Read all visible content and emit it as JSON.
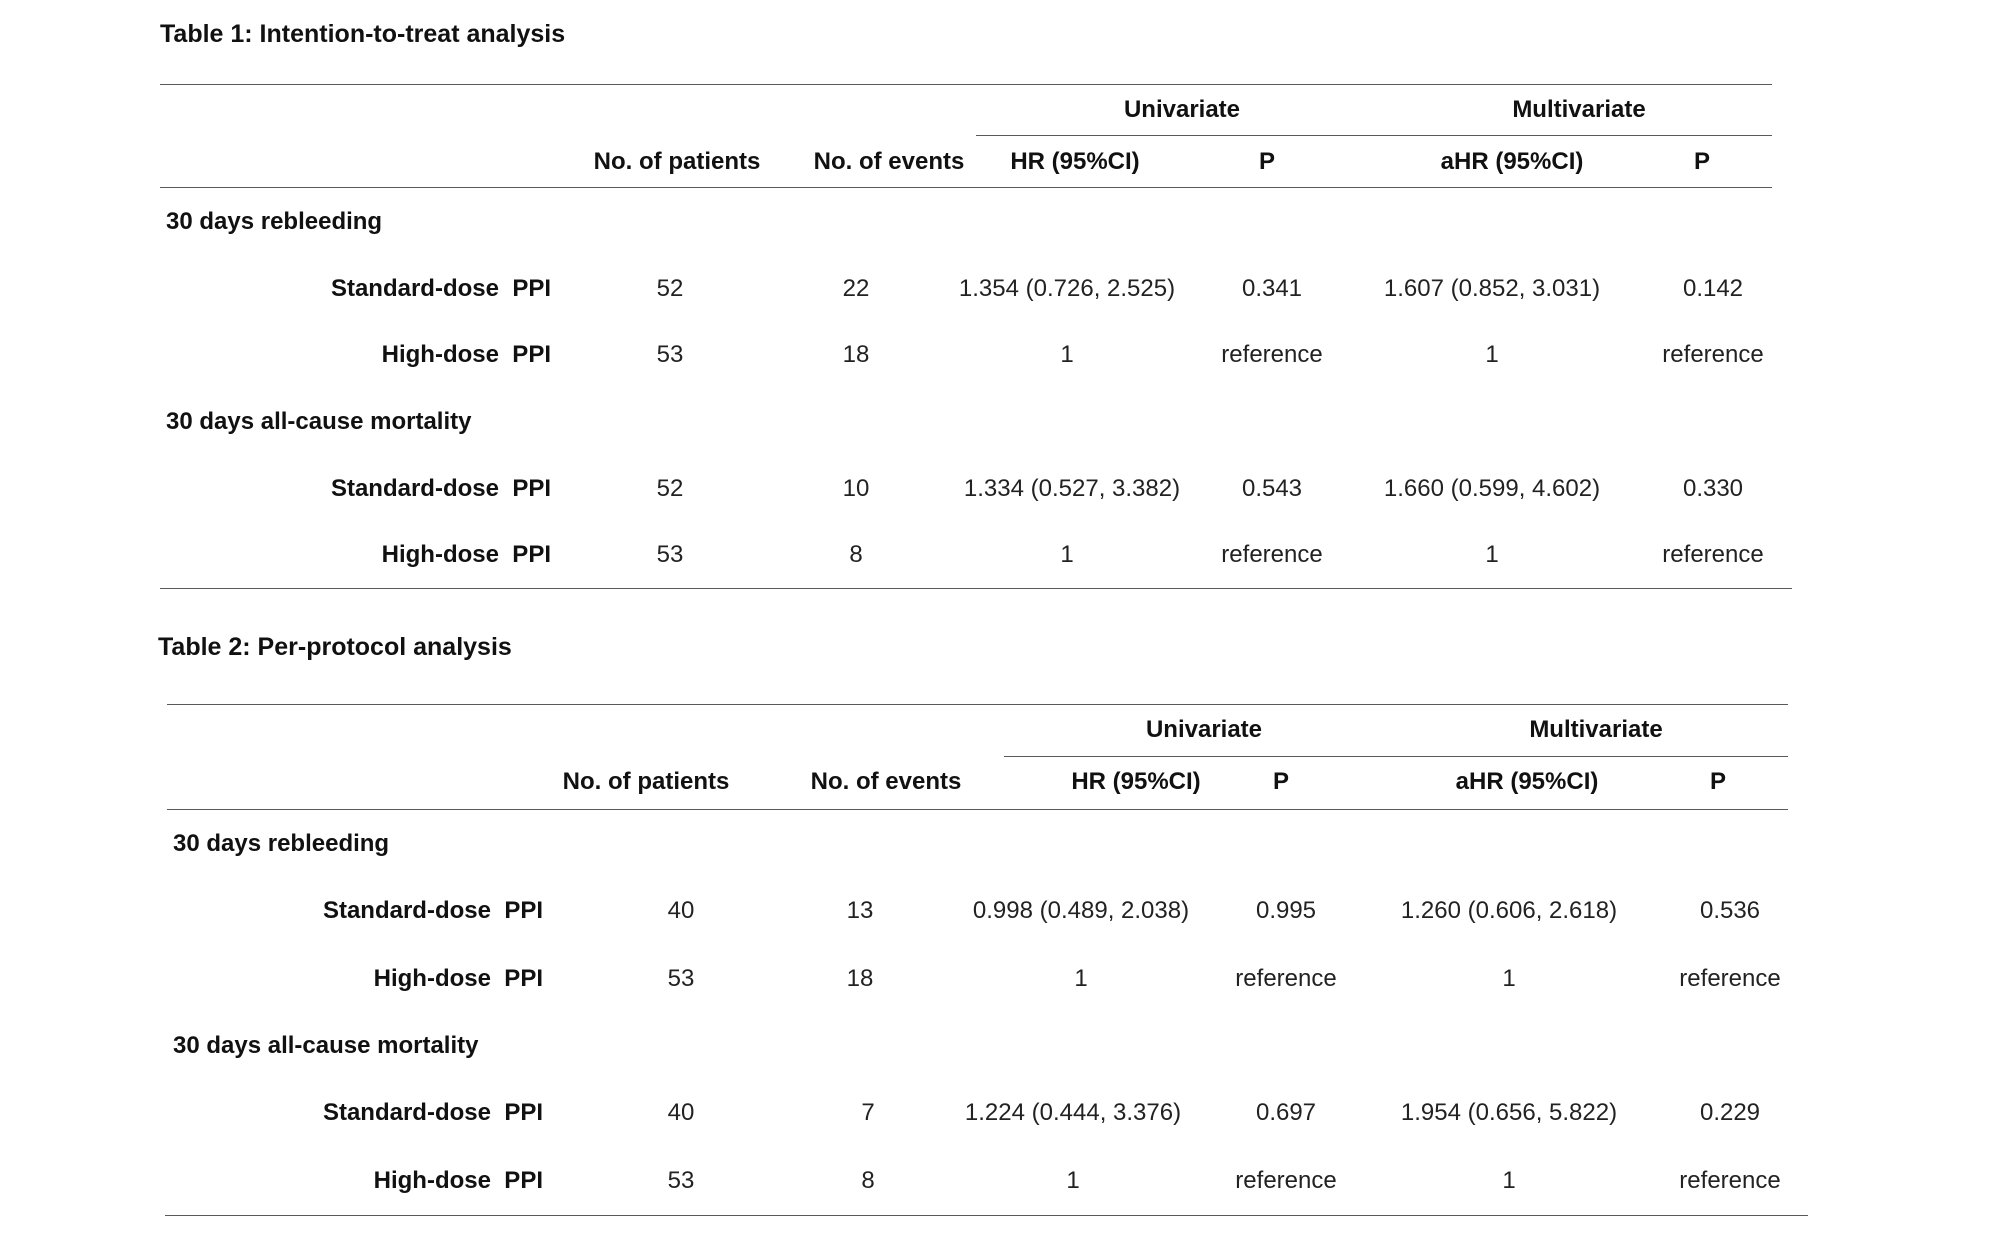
{
  "tables": [
    {
      "caption": "Table 1: Intention-to-treat analysis",
      "group_headers": {
        "univariate": "Univariate",
        "multivariate": "Multivariate"
      },
      "col_headers": {
        "patients": "No. of patients",
        "events": "No. of events",
        "hr": "HR (95%CI)",
        "p1": "P",
        "ahr": "aHR (95%CI)",
        "p2": "P"
      },
      "sections": [
        {
          "title": "30 days rebleeding",
          "rows": [
            {
              "label": "Standard-dose  PPI",
              "patients": "52",
              "events": "22",
              "hr": "1.354 (0.726, 2.525)",
              "p1": "0.341",
              "ahr": "1.607 (0.852,   3.031)",
              "p2": "0.142"
            },
            {
              "label": "High-dose  PPI",
              "patients": "53",
              "events": "18",
              "hr": "1",
              "p1": "reference",
              "ahr": "1",
              "p2": "reference"
            }
          ]
        },
        {
          "title": "30 days all-cause mortality",
          "rows": [
            {
              "label": "Standard-dose  PPI",
              "patients": "52",
              "events": "10",
              "hr": "1.334 (0.527, 3.382)",
              "p1": "0.543",
              "ahr": "1.660 (0.599, 4.602)",
              "p2": "0.330"
            },
            {
              "label": "High-dose  PPI",
              "patients": "53",
              "events": "8",
              "hr": "1",
              "p1": "reference",
              "ahr": "1",
              "p2": "reference"
            }
          ]
        }
      ]
    },
    {
      "caption": "Table 2: Per-protocol analysis",
      "group_headers": {
        "univariate": "Univariate",
        "multivariate": "Multivariate"
      },
      "col_headers": {
        "patients": "No. of patients",
        "events": "No. of events",
        "hr": "HR (95%CI)",
        "p1": "P",
        "ahr": "aHR (95%CI)",
        "p2": "P"
      },
      "sections": [
        {
          "title": "30 days rebleeding",
          "rows": [
            {
              "label": "Standard-dose  PPI",
              "patients": "40",
              "events": "13",
              "hr": "0.998 (0.489, 2.038)",
              "p1": "0.995",
              "ahr": "1.260 (0.606,   2.618)",
              "p2": "0.536"
            },
            {
              "label": "High-dose  PPI",
              "patients": "53",
              "events": "18",
              "hr": "1",
              "p1": "reference",
              "ahr": "1",
              "p2": "reference"
            }
          ]
        },
        {
          "title": "30 days all-cause mortality",
          "rows": [
            {
              "label": "Standard-dose  PPI",
              "patients": "40",
              "events": "7",
              "hr": "1.224 (0.444, 3.376)",
              "p1": "0.697",
              "ahr": "1.954 (0.656, 5.822)",
              "p2": "0.229"
            },
            {
              "label": "High-dose  PPI",
              "patients": "53",
              "events": "8",
              "hr": "1",
              "p1": "reference",
              "ahr": "1",
              "p2": "reference"
            }
          ]
        }
      ]
    }
  ]
}
